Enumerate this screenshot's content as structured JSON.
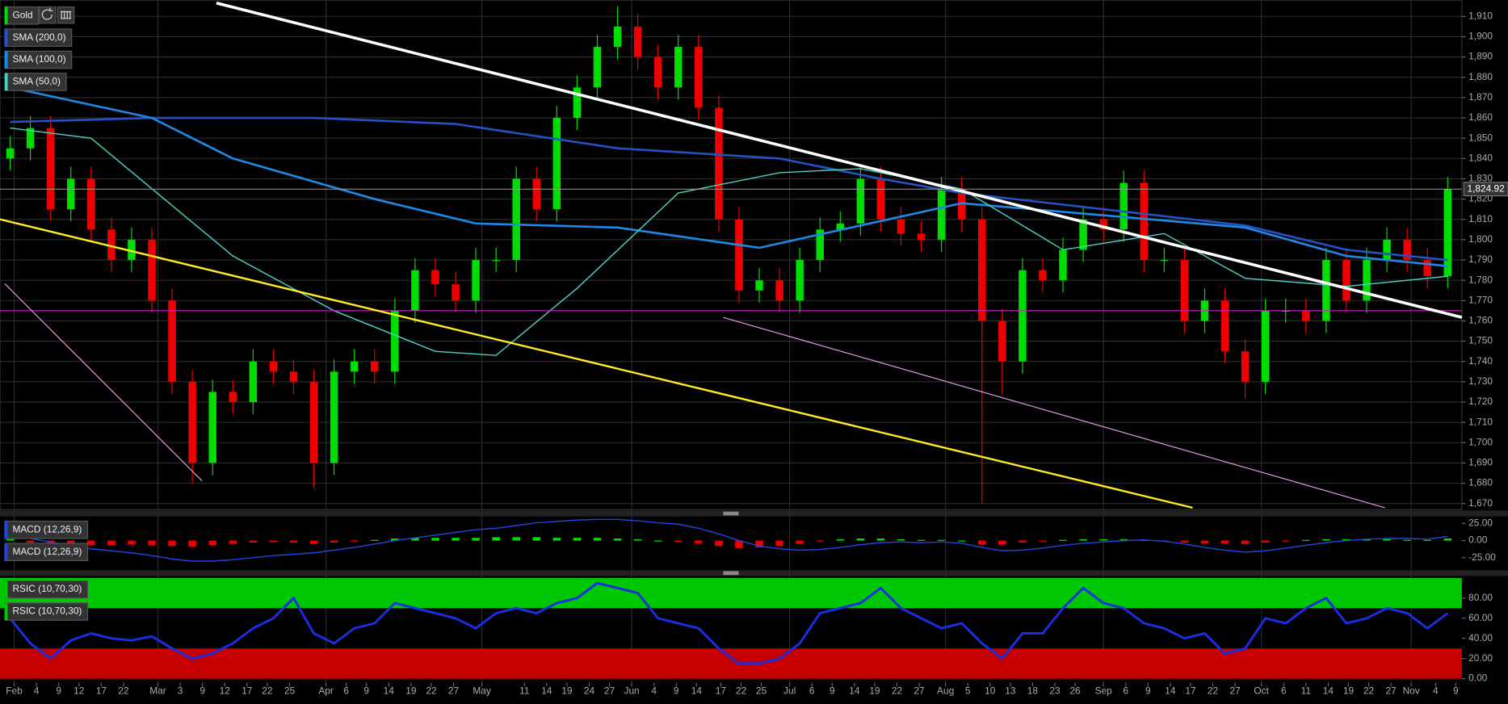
{
  "chart_data": [
    {
      "type": "candlestick",
      "title": "Gold",
      "xlim": [
        -0.5,
        71.7
      ],
      "xticks": [
        {
          "value": 0.2,
          "label": "Feb"
        },
        {
          "value": 1.3,
          "label": "4"
        },
        {
          "value": 2.4,
          "label": "9"
        },
        {
          "value": 3.4,
          "label": "12"
        },
        {
          "value": 4.5,
          "label": "17"
        },
        {
          "value": 5.6,
          "label": "22"
        },
        {
          "value": 7.3,
          "label": "Mar"
        },
        {
          "value": 8.4,
          "label": "3"
        },
        {
          "value": 9.5,
          "label": "9"
        },
        {
          "value": 10.6,
          "label": "12"
        },
        {
          "value": 11.7,
          "label": "17"
        },
        {
          "value": 12.7,
          "label": "22"
        },
        {
          "value": 13.8,
          "label": "25"
        },
        {
          "value": 15.6,
          "label": "Apr"
        },
        {
          "value": 16.6,
          "label": "6"
        },
        {
          "value": 17.6,
          "label": "9"
        },
        {
          "value": 18.7,
          "label": "14"
        },
        {
          "value": 19.8,
          "label": "19"
        },
        {
          "value": 20.8,
          "label": "22"
        },
        {
          "value": 21.9,
          "label": "27"
        },
        {
          "value": 23.3,
          "label": "May"
        },
        {
          "value": 25.4,
          "label": "11"
        },
        {
          "value": 26.5,
          "label": "14"
        },
        {
          "value": 27.5,
          "label": "19"
        },
        {
          "value": 28.6,
          "label": "24"
        },
        {
          "value": 29.6,
          "label": "27"
        },
        {
          "value": 30.7,
          "label": "Jun"
        },
        {
          "value": 31.8,
          "label": "4"
        },
        {
          "value": 32.9,
          "label": "9"
        },
        {
          "value": 33.9,
          "label": "14"
        },
        {
          "value": 35.1,
          "label": "17"
        },
        {
          "value": 36.1,
          "label": "22"
        },
        {
          "value": 37.1,
          "label": "25"
        },
        {
          "value": 38.5,
          "label": "Jul"
        },
        {
          "value": 39.6,
          "label": "6"
        },
        {
          "value": 40.6,
          "label": "9"
        },
        {
          "value": 41.7,
          "label": "14"
        },
        {
          "value": 42.7,
          "label": "19"
        },
        {
          "value": 43.8,
          "label": "22"
        },
        {
          "value": 44.9,
          "label": "27"
        },
        {
          "value": 46.2,
          "label": "Aug"
        },
        {
          "value": 47.3,
          "label": "5"
        },
        {
          "value": 48.4,
          "label": "10"
        },
        {
          "value": 49.4,
          "label": "13"
        },
        {
          "value": 50.5,
          "label": "18"
        },
        {
          "value": 51.6,
          "label": "23"
        },
        {
          "value": 52.6,
          "label": "26"
        },
        {
          "value": 54.0,
          "label": "Sep"
        },
        {
          "value": 55.1,
          "label": "6"
        },
        {
          "value": 56.2,
          "label": "9"
        },
        {
          "value": 57.3,
          "label": "14"
        },
        {
          "value": 58.3,
          "label": "17"
        },
        {
          "value": 59.4,
          "label": "22"
        },
        {
          "value": 60.5,
          "label": "27"
        },
        {
          "value": 61.8,
          "label": "Oct"
        },
        {
          "value": 62.9,
          "label": "6"
        },
        {
          "value": 64.0,
          "label": "11"
        },
        {
          "value": 65.1,
          "label": "14"
        },
        {
          "value": 66.1,
          "label": "19"
        },
        {
          "value": 67.1,
          "label": "22"
        },
        {
          "value": 68.2,
          "label": "27"
        },
        {
          "value": 69.2,
          "label": "Nov"
        },
        {
          "value": 70.4,
          "label": "4"
        },
        {
          "value": 71.4,
          "label": "9"
        }
      ],
      "ylim": [
        1667,
        1918
      ],
      "yticks": [
        {
          "value": 1670,
          "label": "1,670"
        },
        {
          "value": 1680,
          "label": "1,680"
        },
        {
          "value": 1690,
          "label": "1,690"
        },
        {
          "value": 1700,
          "label": "1,700"
        },
        {
          "value": 1710,
          "label": "1,710"
        },
        {
          "value": 1720,
          "label": "1,720"
        },
        {
          "value": 1730,
          "label": "1,730"
        },
        {
          "value": 1740,
          "label": "1,740"
        },
        {
          "value": 1750,
          "label": "1,750"
        },
        {
          "value": 1760,
          "label": "1,760"
        },
        {
          "value": 1770,
          "label": "1,770"
        },
        {
          "value": 1780,
          "label": "1,780"
        },
        {
          "value": 1790,
          "label": "1,790"
        },
        {
          "value": 1800,
          "label": "1,800"
        },
        {
          "value": 1810,
          "label": "1,810"
        },
        {
          "value": 1820,
          "label": "1,820"
        },
        {
          "value": 1830,
          "label": "1,830"
        },
        {
          "value": 1840,
          "label": "1,840"
        },
        {
          "value": 1850,
          "label": "1,850"
        },
        {
          "value": 1860,
          "label": "1,860"
        },
        {
          "value": 1870,
          "label": "1,870"
        },
        {
          "value": 1880,
          "label": "1,880"
        },
        {
          "value": 1890,
          "label": "1,890"
        },
        {
          "value": 1900,
          "label": "1,900"
        },
        {
          "value": 1910,
          "label": "1,910"
        }
      ],
      "grid": true,
      "up_color": "#00dd00",
      "down_color": "#ee0000",
      "open": [
        1840,
        1845,
        1855,
        1815,
        1830,
        1805,
        1790,
        1800,
        1770,
        1730,
        1690,
        1725,
        1720,
        1740,
        1735,
        1730,
        1690,
        1735,
        1740,
        1735,
        1765,
        1785,
        1778,
        1770,
        1790,
        1790,
        1830,
        1815,
        1860,
        1875,
        1895,
        1905,
        1890,
        1875,
        1895,
        1865,
        1810,
        1775,
        1780,
        1770,
        1790,
        1805,
        1808,
        1830,
        1810,
        1803,
        1800,
        1825,
        1810,
        1760,
        1740,
        1785,
        1780,
        1795,
        1810,
        1805,
        1828,
        1790,
        1790,
        1760,
        1770,
        1745,
        1730,
        1765,
        1765,
        1760,
        1790,
        1770,
        1790,
        1800,
        1790,
        1782
      ],
      "high": [
        1851,
        1861,
        1861,
        1836,
        1836,
        1811,
        1806,
        1806,
        1776,
        1736,
        1731,
        1731,
        1746,
        1746,
        1741,
        1736,
        1741,
        1746,
        1746,
        1771,
        1791,
        1791,
        1784,
        1796,
        1796,
        1836,
        1836,
        1866,
        1881,
        1901,
        1915,
        1911,
        1896,
        1901,
        1901,
        1871,
        1816,
        1786,
        1786,
        1796,
        1811,
        1814,
        1836,
        1836,
        1816,
        1809,
        1831,
        1831,
        1816,
        1766,
        1791,
        1791,
        1801,
        1816,
        1816,
        1834,
        1834,
        1796,
        1796,
        1776,
        1776,
        1751,
        1771,
        1771,
        1771,
        1796,
        1796,
        1796,
        1806,
        1806,
        1796,
        1831
      ],
      "low": [
        1834,
        1839,
        1809,
        1809,
        1799,
        1784,
        1784,
        1764,
        1724,
        1680,
        1684,
        1714,
        1714,
        1729,
        1724,
        1678,
        1684,
        1729,
        1729,
        1729,
        1759,
        1772,
        1764,
        1764,
        1784,
        1784,
        1809,
        1809,
        1854,
        1869,
        1889,
        1884,
        1869,
        1869,
        1859,
        1804,
        1769,
        1769,
        1764,
        1764,
        1784,
        1799,
        1802,
        1804,
        1797,
        1794,
        1794,
        1804,
        1670,
        1724,
        1734,
        1774,
        1774,
        1789,
        1799,
        1799,
        1784,
        1784,
        1754,
        1754,
        1739,
        1722,
        1724,
        1759,
        1754,
        1754,
        1764,
        1764,
        1784,
        1784,
        1776,
        1776
      ],
      "close": [
        1845,
        1855,
        1815,
        1830,
        1805,
        1790,
        1800,
        1770,
        1730,
        1690,
        1725,
        1720,
        1740,
        1735,
        1730,
        1690,
        1735,
        1740,
        1735,
        1765,
        1785,
        1778,
        1770,
        1790,
        1790,
        1830,
        1815,
        1860,
        1875,
        1895,
        1905,
        1890,
        1875,
        1895,
        1865,
        1810,
        1775,
        1780,
        1770,
        1790,
        1805,
        1808,
        1830,
        1810,
        1803,
        1800,
        1825,
        1810,
        1760,
        1740,
        1785,
        1780,
        1795,
        1810,
        1805,
        1828,
        1790,
        1790,
        1760,
        1770,
        1745,
        1730,
        1765,
        1765,
        1760,
        1790,
        1770,
        1790,
        1800,
        1790,
        1782,
        1825
      ],
      "series": [
        {
          "name": "SMA (200,0)",
          "color": "#2452c0",
          "x": [
            0,
            7,
            15,
            22,
            30,
            38,
            43,
            47,
            54,
            61,
            66,
            71
          ],
          "values": [
            1858,
            1860,
            1860,
            1857,
            1845,
            1840,
            1830,
            1823,
            1815,
            1807,
            1795,
            1790
          ]
        },
        {
          "name": "SMA (100,0)",
          "color": "#1e88e5",
          "x": [
            0,
            7,
            11,
            18,
            23,
            30,
            37,
            47,
            54,
            61,
            66,
            71
          ],
          "values": [
            1875,
            1860,
            1840,
            1820,
            1808,
            1806,
            1796,
            1818,
            1812,
            1806,
            1792,
            1787
          ]
        },
        {
          "name": "SMA (50,0)",
          "color": "#4dd0c4",
          "x": [
            0,
            4,
            11,
            16,
            21,
            24,
            28,
            33,
            38,
            42,
            47,
            52,
            57,
            61,
            66,
            71
          ],
          "values": [
            1855,
            1850,
            1792,
            1765,
            1745,
            1743,
            1776,
            1823,
            1833,
            1835,
            1825,
            1795,
            1803,
            1781,
            1777,
            1782
          ]
        }
      ],
      "last_price": {
        "value": 1824.92,
        "label": "1,824.92"
      }
    },
    {
      "type": "macd",
      "legend": [
        "MACD (12,26,9)",
        "MACD (12,26,9)"
      ],
      "ylim": [
        -42,
        34
      ],
      "yticks": [
        {
          "value": 25,
          "label": "25.00"
        },
        {
          "value": 0,
          "label": "0.00"
        },
        {
          "value": -25,
          "label": "-25.00"
        }
      ],
      "up_color": "#00dd00",
      "down_color": "#ee0000",
      "line_color": "#2244dd",
      "histogram": [
        2,
        -3,
        -5,
        -6,
        -7,
        -7,
        -6,
        -7,
        -8,
        -9,
        -7,
        -5,
        -3,
        -2,
        -3,
        -5,
        -3,
        -1,
        1,
        3,
        4,
        4,
        4,
        4,
        5,
        5,
        5,
        4,
        4,
        4,
        3,
        2,
        0,
        -2,
        -4,
        -8,
        -11,
        -10,
        -8,
        -5,
        -1,
        2,
        3,
        3,
        2,
        1,
        1,
        0,
        -6,
        -6,
        -3,
        -1,
        1,
        2,
        2,
        2,
        1,
        -1,
        -3,
        -4,
        -4,
        -5,
        -3,
        -1,
        1,
        2,
        2,
        2,
        2,
        1,
        1,
        3
      ],
      "values": [
        8,
        3,
        -2,
        -8,
        -12,
        -15,
        -18,
        -22,
        -27,
        -30,
        -30,
        -28,
        -25,
        -22,
        -20,
        -18,
        -14,
        -10,
        -5,
        0,
        4,
        8,
        12,
        16,
        18,
        22,
        26,
        28,
        30,
        31,
        31,
        29,
        26,
        24,
        18,
        10,
        0,
        -8,
        -12,
        -14,
        -13,
        -10,
        -6,
        -3,
        -2,
        -3,
        -2,
        -4,
        -10,
        -15,
        -14,
        -11,
        -7,
        -4,
        -2,
        0,
        1,
        -1,
        -5,
        -10,
        -14,
        -17,
        -15,
        -11,
        -7,
        -3,
        0,
        2,
        3,
        3,
        2,
        6
      ]
    },
    {
      "type": "rsi",
      "legend": [
        "RSIC (10,70,30)",
        "RSIC (10,70,30)"
      ],
      "ylim": [
        -4,
        101
      ],
      "yticks": [
        {
          "value": 80,
          "label": "80.00"
        },
        {
          "value": 60,
          "label": "60.00"
        },
        {
          "value": 40,
          "label": "40.00"
        },
        {
          "value": 20,
          "label": "20.00"
        },
        {
          "value": 0,
          "label": "0.00"
        }
      ],
      "zones": [
        {
          "from": 70,
          "to": 100,
          "color": "#00c800"
        },
        {
          "from": 0,
          "to": 30,
          "color": "#c80000"
        }
      ],
      "line_color": "#1a2ee0",
      "values": [
        60,
        35,
        20,
        38,
        45,
        40,
        38,
        42,
        30,
        20,
        25,
        35,
        50,
        60,
        80,
        45,
        35,
        50,
        55,
        75,
        70,
        65,
        60,
        50,
        65,
        70,
        65,
        75,
        80,
        95,
        90,
        85,
        60,
        55,
        50,
        30,
        15,
        15,
        20,
        35,
        65,
        70,
        75,
        90,
        70,
        60,
        50,
        55,
        35,
        20,
        45,
        45,
        70,
        90,
        75,
        70,
        55,
        50,
        40,
        45,
        25,
        30,
        60,
        55,
        70,
        80,
        55,
        60,
        70,
        65,
        50,
        65
      ]
    }
  ]
}
